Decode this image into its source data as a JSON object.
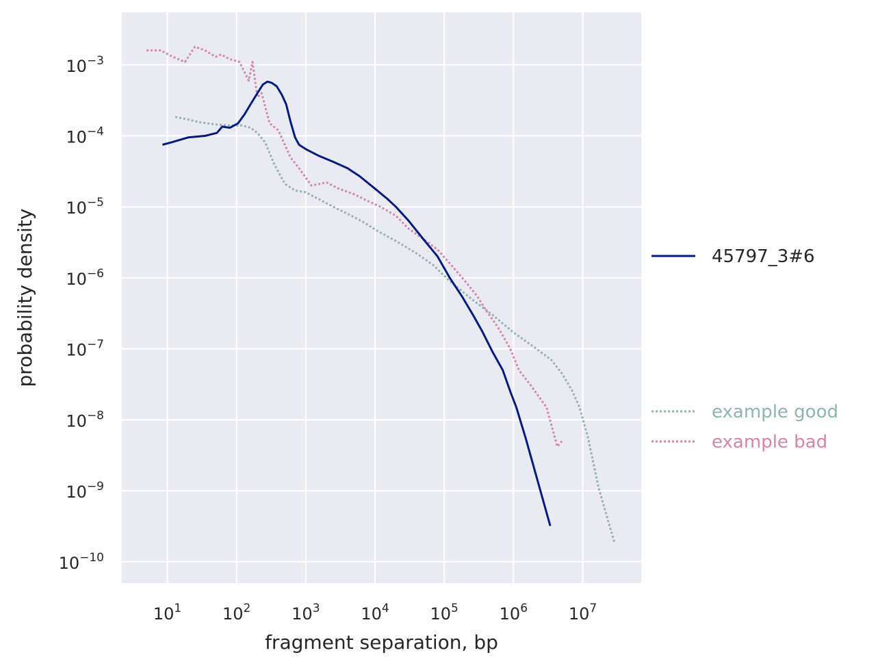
{
  "chart_data": {
    "type": "line",
    "xlabel": "fragment separation, bp",
    "ylabel": "probability density",
    "xscale": "log",
    "yscale": "log",
    "xlim": [
      2.2,
      70000000
    ],
    "ylim": [
      5e-11,
      0.0055
    ],
    "xticks": [
      {
        "value": 10,
        "base": "10",
        "exp": "1"
      },
      {
        "value": 100,
        "base": "10",
        "exp": "2"
      },
      {
        "value": 1000,
        "base": "10",
        "exp": "3"
      },
      {
        "value": 10000,
        "base": "10",
        "exp": "4"
      },
      {
        "value": 100000,
        "base": "10",
        "exp": "5"
      },
      {
        "value": 1000000,
        "base": "10",
        "exp": "6"
      },
      {
        "value": 10000000,
        "base": "10",
        "exp": "7"
      }
    ],
    "yticks": [
      {
        "value": 0.001,
        "base": "10",
        "exp": "−3"
      },
      {
        "value": 0.0001,
        "base": "10",
        "exp": "−4"
      },
      {
        "value": 1e-05,
        "base": "10",
        "exp": "−5"
      },
      {
        "value": 1e-06,
        "base": "10",
        "exp": "−6"
      },
      {
        "value": 1e-07,
        "base": "10",
        "exp": "−7"
      },
      {
        "value": 1e-08,
        "base": "10",
        "exp": "−8"
      },
      {
        "value": 1e-09,
        "base": "10",
        "exp": "−9"
      },
      {
        "value": 1e-10,
        "base": "10",
        "exp": "−10"
      }
    ],
    "grid": true,
    "legend_placement": "outside-right",
    "background": "#eaeaf2",
    "series": [
      {
        "name": "45797_3#6",
        "color": "#001c7f",
        "style": "solid",
        "x": [
          8.5,
          12,
          20,
          35,
          52,
          62,
          80,
          105,
          130,
          160,
          200,
          240,
          280,
          320,
          380,
          450,
          520,
          600,
          700,
          800,
          1000,
          1500,
          2500,
          4000,
          6000,
          10000,
          15000,
          20000,
          30000,
          50000,
          80000,
          120000,
          180000,
          260000,
          350000,
          500000,
          700000,
          900000,
          1100000,
          1500000,
          3400000
        ],
        "y": [
          7.5e-05,
          8.2e-05,
          9.5e-05,
          0.0001,
          0.00011,
          0.000135,
          0.00013,
          0.00015,
          0.0002,
          0.00028,
          0.0004,
          0.00053,
          0.00058,
          0.00056,
          0.0005,
          0.00038,
          0.00028,
          0.00016,
          9.5e-05,
          7.5e-05,
          6.5e-05,
          5.3e-05,
          4.3e-05,
          3.5e-05,
          2.7e-05,
          1.8e-05,
          1.3e-05,
          1e-05,
          6.5e-06,
          3.5e-06,
          2e-06,
          1e-06,
          5.5e-07,
          3e-07,
          1.8e-07,
          9e-08,
          5e-08,
          2.5e-08,
          1.5e-08,
          5.5e-09,
          3.2e-10
        ]
      },
      {
        "name": "example good",
        "color": "#8fb4b0",
        "style": "dotted",
        "x": [
          13,
          20,
          30,
          50,
          80,
          120,
          160,
          200,
          260,
          350,
          500,
          700,
          1000,
          1500,
          2500,
          4000,
          7000,
          10000,
          20000,
          40000,
          70000,
          120000,
          250000,
          500000,
          1000000,
          2000000,
          3500000,
          5000000,
          7000000,
          9000000,
          12000000,
          17000000,
          29000000
        ],
        "y": [
          0.000185,
          0.00017,
          0.000155,
          0.000145,
          0.00014,
          0.00014,
          0.00013,
          0.00011,
          8e-05,
          4e-05,
          2.1e-05,
          1.7e-05,
          1.6e-05,
          1.3e-05,
          1e-05,
          8e-06,
          6e-06,
          4.8e-06,
          3.3e-06,
          2.2e-06,
          1.5e-06,
          9e-07,
          5e-07,
          3e-07,
          1.7e-07,
          1.05e-07,
          7e-08,
          4.5e-08,
          2.6e-08,
          1.5e-08,
          5.5e-09,
          1.1e-09,
          1.8e-10
        ]
      },
      {
        "name": "example bad",
        "color": "#d187a8",
        "style": "dotted",
        "x": [
          5,
          8,
          12,
          18,
          25,
          35,
          50,
          60,
          80,
          110,
          150,
          170,
          200,
          230,
          300,
          400,
          600,
          800,
          1200,
          2000,
          3000,
          5000,
          8000,
          12000,
          20000,
          30000,
          50000,
          80000,
          120000,
          200000,
          300000,
          400000,
          600000,
          900000,
          1200000,
          1800000,
          3000000,
          4300000,
          5000000
        ],
        "y": [
          0.0016,
          0.0016,
          0.0013,
          0.0011,
          0.0018,
          0.0016,
          0.0013,
          0.0014,
          0.0012,
          0.0011,
          0.0006,
          0.0011,
          0.00035,
          0.0004,
          0.00015,
          0.00012,
          5e-05,
          3.5e-05,
          2e-05,
          2.2e-05,
          1.8e-05,
          1.5e-05,
          1.2e-05,
          1e-05,
          7.5e-06,
          5e-06,
          3.5e-06,
          2.5e-06,
          1.6e-06,
          9e-07,
          5.5e-07,
          3.5e-07,
          2e-07,
          1e-07,
          5e-08,
          3e-08,
          1.5e-08,
          4.2e-09,
          5e-09
        ]
      }
    ]
  }
}
